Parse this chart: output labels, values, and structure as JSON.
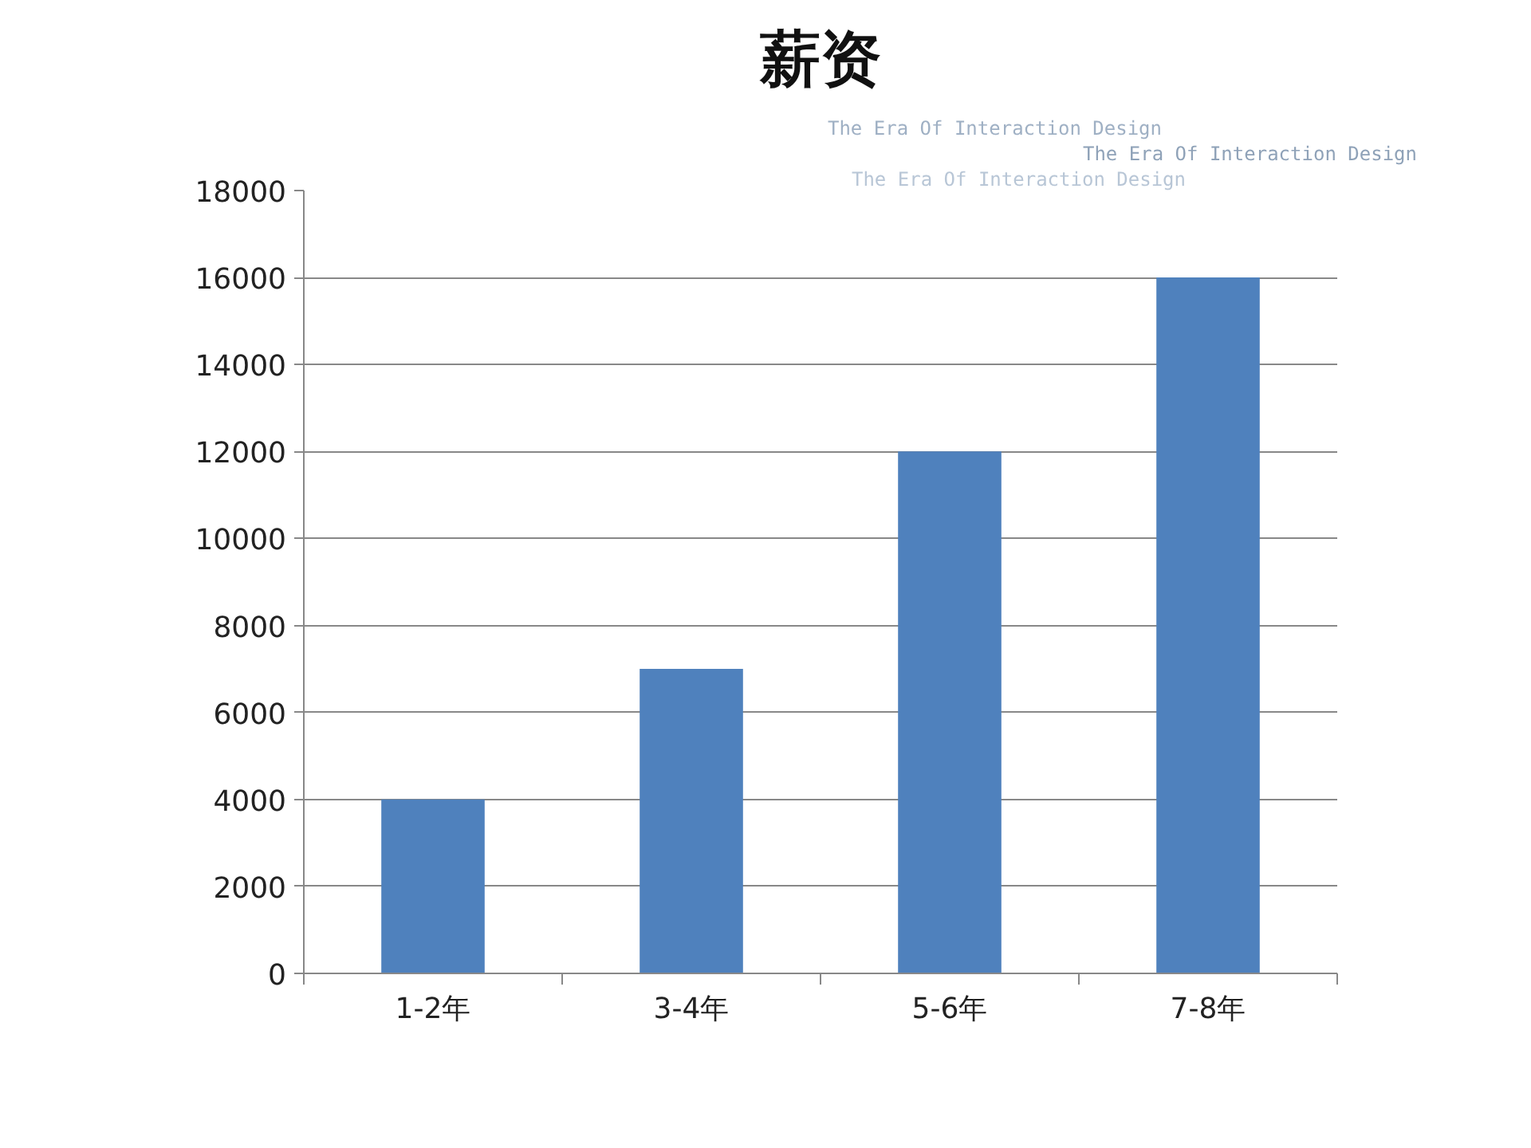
{
  "chart_data": {
    "type": "bar",
    "title": "薪资",
    "categories": [
      "1-2年",
      "3-4年",
      "5-6年",
      "7-8年"
    ],
    "values": [
      4000,
      7000,
      12000,
      16000
    ],
    "color": "#4f81bd",
    "ylim": [
      0,
      18000
    ],
    "yticks": [
      0,
      2000,
      4000,
      6000,
      8000,
      10000,
      12000,
      14000,
      16000,
      18000
    ],
    "grid": "y",
    "annotations": [
      "The Era Of Interaction Design",
      "The Era Of Interaction Design",
      "The Era Of Interaction Design"
    ]
  }
}
